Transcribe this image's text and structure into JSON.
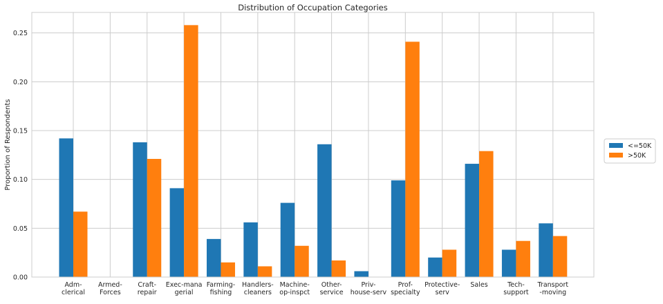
{
  "chart_data": {
    "type": "bar",
    "title": "Distribution of Occupation Categories",
    "xlabel": "",
    "ylabel": "Proportion of Respondents",
    "ylim": [
      0,
      0.271
    ],
    "yticks": [
      "0.00",
      "0.05",
      "0.10",
      "0.15",
      "0.20",
      "0.25"
    ],
    "grid": true,
    "legend_position": "right",
    "categories": [
      [
        "Adm-",
        "clerical"
      ],
      [
        "Armed-",
        "Forces"
      ],
      [
        "Craft-",
        "repair"
      ],
      [
        "Exec-mana",
        "gerial"
      ],
      [
        "Farming-",
        "fishing"
      ],
      [
        "Handlers-",
        "cleaners"
      ],
      [
        "Machine-",
        "op-inspct"
      ],
      [
        "Other-",
        "service"
      ],
      [
        "Priv-",
        "house-serv"
      ],
      [
        "Prof-",
        "specialty"
      ],
      [
        "Protective-",
        "serv"
      ],
      [
        "Sales"
      ],
      [
        "Tech-",
        "support"
      ],
      [
        "Transport",
        "-moving"
      ]
    ],
    "series": [
      {
        "name": "<=50K",
        "color": "#1f77b4",
        "values": [
          0.142,
          0.0003,
          0.138,
          0.091,
          0.039,
          0.056,
          0.076,
          0.136,
          0.006,
          0.099,
          0.02,
          0.116,
          0.028,
          0.055
        ]
      },
      {
        "name": ">50K",
        "color": "#ff7f0e",
        "values": [
          0.067,
          0.0001,
          0.121,
          0.258,
          0.015,
          0.011,
          0.032,
          0.017,
          0.0003,
          0.241,
          0.028,
          0.129,
          0.037,
          0.042
        ]
      }
    ]
  }
}
